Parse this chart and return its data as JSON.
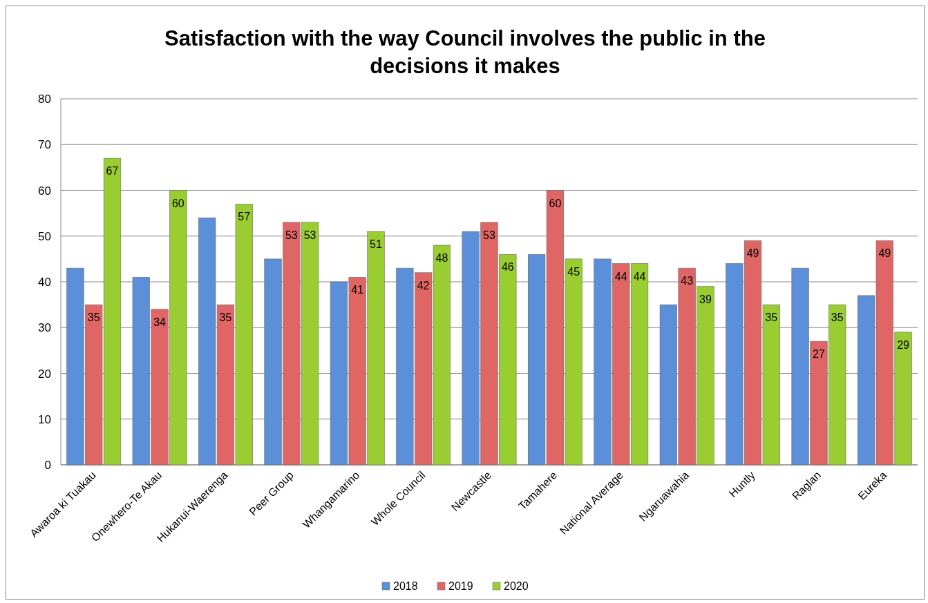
{
  "chart_data": {
    "type": "bar",
    "title": "Satisfaction with the way Council involves the public in the decisions it makes",
    "categories": [
      "Awaroa ki Tuakau",
      "Onewhero-Te Akau",
      "Hukanui-Waerenga",
      "Peer Group",
      "Whangamarino",
      "Whole Council",
      "Newcastle",
      "Tamahere",
      "National Average",
      "Ngaruawahia",
      "Huntly",
      "Raglan",
      "Eureka"
    ],
    "series": [
      {
        "name": "2018",
        "color": "#5b8fd9",
        "values": [
          43,
          41,
          54,
          45,
          40,
          43,
          51,
          46,
          45,
          35,
          44,
          43,
          37
        ]
      },
      {
        "name": "2019",
        "color": "#e06666",
        "values": [
          35,
          34,
          35,
          53,
          41,
          42,
          53,
          60,
          44,
          43,
          49,
          27,
          49
        ],
        "value_labels": [
          "35",
          "34",
          "35",
          "53",
          "41",
          "42",
          "53",
          "60",
          "44",
          "43",
          "49",
          "27",
          "49"
        ]
      },
      {
        "name": "2020",
        "color": "#9acd32",
        "values": [
          67,
          60,
          57,
          53,
          51,
          48,
          46,
          45,
          44,
          39,
          35,
          35,
          29
        ],
        "value_labels": [
          "67",
          "60",
          "57",
          "53",
          "51",
          "48",
          "46",
          "45",
          "44",
          "39",
          "35",
          "35",
          "29"
        ]
      }
    ],
    "ylim": [
      0,
      80
    ],
    "yticks": [
      0,
      10,
      20,
      30,
      40,
      50,
      60,
      70,
      80
    ],
    "grid": "y",
    "legend": "bottom"
  }
}
